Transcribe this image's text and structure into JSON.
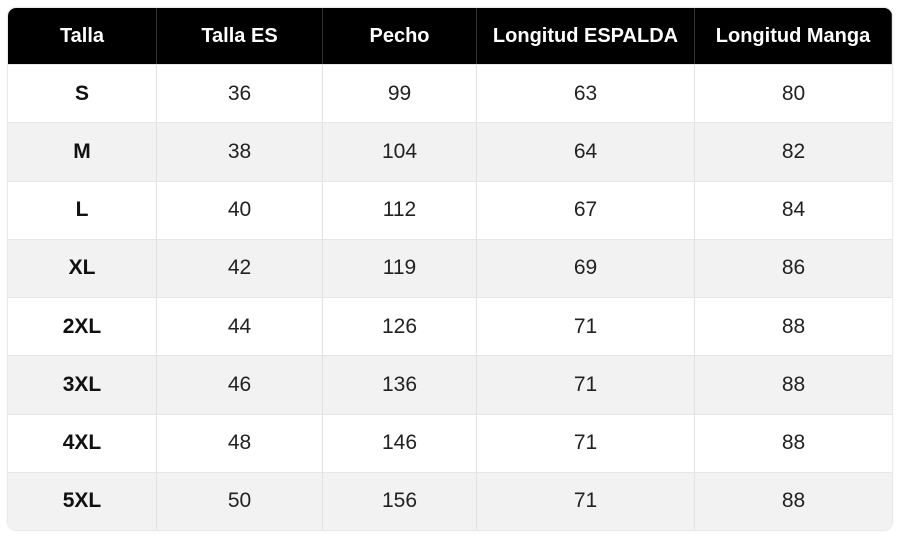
{
  "table": {
    "headers": [
      "Talla",
      "Talla ES",
      "Pecho",
      "Longitud ESPALDA",
      "Longitud Manga"
    ],
    "rows": [
      [
        "S",
        36,
        99,
        63,
        80
      ],
      [
        "M",
        38,
        104,
        64,
        82
      ],
      [
        "L",
        40,
        112,
        67,
        84
      ],
      [
        "XL",
        42,
        119,
        69,
        86
      ],
      [
        "2XL",
        44,
        126,
        71,
        88
      ],
      [
        "3XL",
        46,
        136,
        71,
        88
      ],
      [
        "4XL",
        48,
        146,
        71,
        88
      ],
      [
        "5XL",
        50,
        156,
        71,
        88
      ]
    ]
  }
}
